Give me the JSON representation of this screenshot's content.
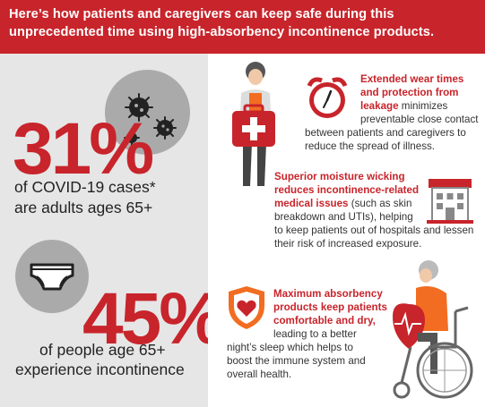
{
  "header": {
    "line1": "Here’s how patients and caregivers can keep safe during this",
    "line2": "unprecedented time using high-absorbency incontinence products."
  },
  "stats": [
    {
      "number": "31%",
      "line1": "of COVID-19 cases*",
      "line2": "are adults ages 65+"
    },
    {
      "number": "45%",
      "line1": "of people age 65+",
      "line2": "experience incontinence"
    }
  ],
  "points": [
    {
      "title_lines": [
        "Extended wear times",
        "and protection from",
        "leakage"
      ],
      "body_lines": [
        "minimizes",
        "preventable close contact",
        "between patients and caregivers to",
        "reduce the spread of illness."
      ]
    },
    {
      "title_lines": [
        "Superior moisture wicking",
        "reduces incontinence-related",
        "medical issues"
      ],
      "body_lines": [
        "(such as skin",
        "breakdown and UTIs), helping",
        "to keep patients out of hospitals and lessen",
        "their risk of increased exposure."
      ]
    },
    {
      "title_lines": [
        "Maximum absorbency",
        "products keep patients",
        "comfortable and dry,"
      ],
      "body_lines": [
        "leading to a better",
        "night’s sleep which helps to",
        "boost the immune system and",
        "overall health."
      ]
    }
  ],
  "colors": {
    "brand_red": "#c8242b",
    "orange": "#f26d21",
    "gray_circle": "#aaaaaa",
    "left_bg": "#e6e6e6"
  },
  "icons": [
    "virus-icon",
    "diaper-icon",
    "caregiver-first-aid-icon",
    "alarm-clock-icon",
    "hospital-building-icon",
    "heart-shield-icon",
    "wheelchair-patient-icon"
  ]
}
